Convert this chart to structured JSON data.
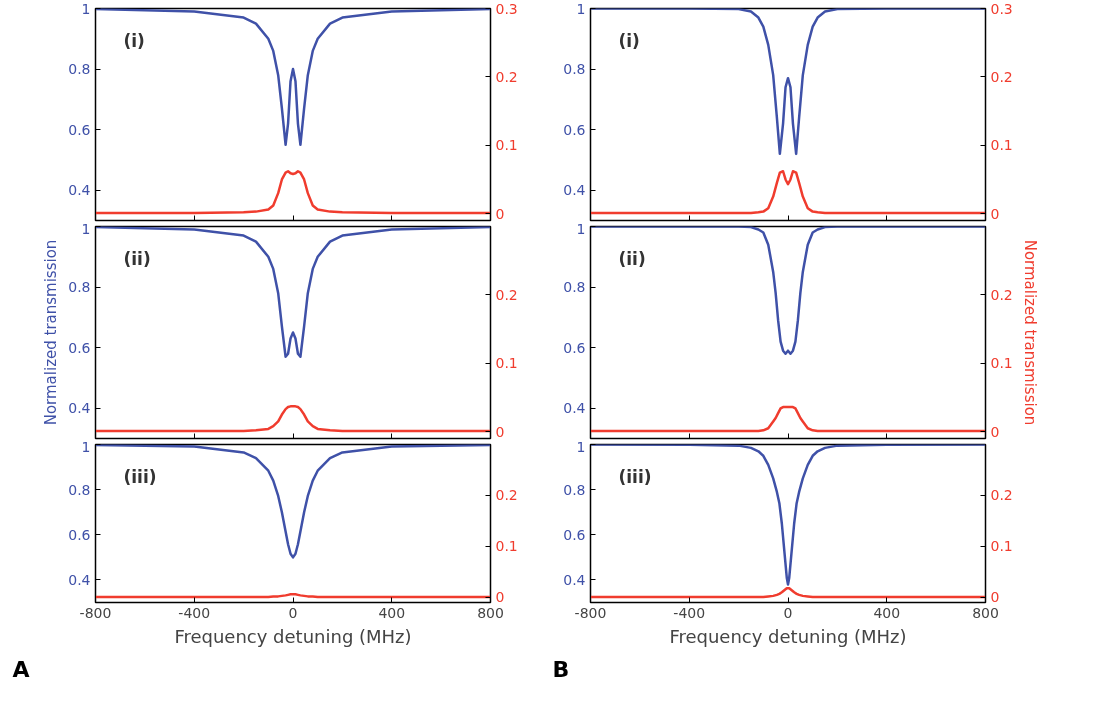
{
  "chart_data": [
    {
      "type": "line",
      "xlim": [
        -800,
        800
      ],
      "xticks": [
        -800,
        -400,
        0,
        400,
        800
      ],
      "ylim": [
        0.3,
        1
      ],
      "yticks": [
        0.4,
        0.6,
        0.8,
        1
      ],
      "y2lim": [
        -0.01,
        0.3
      ],
      "y2ticks": [
        0,
        0.1,
        0.2,
        0.3
      ],
      "tick_labels": "y",
      "annotations": [
        "(i)"
      ],
      "series": [
        {
          "color": "#3f51a8",
          "x": [
            -800,
            -400,
            -200,
            -150,
            -100,
            -80,
            -60,
            -45,
            -30,
            -20,
            -10,
            0,
            10,
            20,
            30,
            45,
            60,
            80,
            100,
            150,
            200,
            400,
            800
          ],
          "values": [
            0.998,
            0.99,
            0.97,
            0.95,
            0.9,
            0.86,
            0.78,
            0.67,
            0.55,
            0.62,
            0.76,
            0.8,
            0.76,
            0.62,
            0.55,
            0.67,
            0.78,
            0.86,
            0.9,
            0.95,
            0.97,
            0.99,
            0.998
          ]
        },
        {
          "color": "#f03c2e",
          "axis": "y2",
          "x": [
            -800,
            -400,
            -200,
            -150,
            -100,
            -80,
            -60,
            -45,
            -30,
            -20,
            -10,
            0,
            10,
            20,
            30,
            45,
            60,
            80,
            100,
            150,
            200,
            400,
            800
          ],
          "values": [
            0.001,
            0.001,
            0.002,
            0.003,
            0.006,
            0.012,
            0.03,
            0.05,
            0.06,
            0.062,
            0.059,
            0.058,
            0.059,
            0.062,
            0.06,
            0.05,
            0.03,
            0.012,
            0.006,
            0.003,
            0.002,
            0.001,
            0.001
          ]
        }
      ]
    },
    {
      "type": "line",
      "xlim": [
        -800,
        800
      ],
      "xticks": [
        -800,
        -400,
        0,
        400,
        800
      ],
      "ylim": [
        0.3,
        1
      ],
      "yticks": [
        0.4,
        0.6,
        0.8,
        1
      ],
      "y2lim": [
        -0.01,
        0.3
      ],
      "y2ticks": [
        0,
        0.1,
        0.2,
        0.3
      ],
      "tick_labels": "y",
      "annotations": [
        "(i)"
      ],
      "series": [
        {
          "color": "#3f51a8",
          "x": [
            -800,
            -400,
            -200,
            -150,
            -120,
            -100,
            -80,
            -60,
            -45,
            -33,
            -20,
            -10,
            0,
            10,
            20,
            33,
            45,
            60,
            80,
            100,
            120,
            150,
            200,
            400,
            800
          ],
          "values": [
            1,
            1,
            0.998,
            0.99,
            0.97,
            0.94,
            0.88,
            0.78,
            0.64,
            0.52,
            0.62,
            0.74,
            0.77,
            0.74,
            0.62,
            0.52,
            0.64,
            0.78,
            0.88,
            0.94,
            0.97,
            0.99,
            0.998,
            1,
            1
          ]
        },
        {
          "color": "#f03c2e",
          "axis": "y2",
          "x": [
            -800,
            -400,
            -200,
            -150,
            -120,
            -100,
            -80,
            -60,
            -45,
            -33,
            -20,
            -10,
            0,
            10,
            20,
            33,
            45,
            60,
            80,
            100,
            120,
            150,
            200,
            400,
            800
          ],
          "values": [
            0.001,
            0.001,
            0.001,
            0.001,
            0.002,
            0.003,
            0.008,
            0.025,
            0.045,
            0.06,
            0.062,
            0.05,
            0.043,
            0.05,
            0.062,
            0.06,
            0.045,
            0.025,
            0.008,
            0.003,
            0.002,
            0.001,
            0.001,
            0.001,
            0.001
          ]
        }
      ]
    },
    {
      "type": "line",
      "xlim": [
        -800,
        800
      ],
      "xticks": [
        -800,
        -400,
        0,
        400,
        800
      ],
      "ylim": [
        0.3,
        1
      ],
      "yticks": [
        0.4,
        0.6,
        0.8,
        1
      ],
      "y2lim": [
        -0.01,
        0.3
      ],
      "y2ticks": [
        0,
        0.1,
        0.2
      ],
      "tick_labels": "y",
      "ylabel": "Normalized transmission",
      "annotations": [
        "(ii)"
      ],
      "series": [
        {
          "color": "#3f51a8",
          "x": [
            -800,
            -400,
            -200,
            -150,
            -100,
            -80,
            -60,
            -45,
            -30,
            -20,
            -10,
            0,
            10,
            20,
            30,
            45,
            60,
            80,
            100,
            150,
            200,
            400,
            800
          ],
          "values": [
            0.998,
            0.99,
            0.97,
            0.95,
            0.9,
            0.86,
            0.78,
            0.67,
            0.57,
            0.58,
            0.63,
            0.65,
            0.63,
            0.58,
            0.57,
            0.67,
            0.78,
            0.86,
            0.9,
            0.95,
            0.97,
            0.99,
            0.998
          ]
        },
        {
          "color": "#f03c2e",
          "axis": "y2",
          "x": [
            -800,
            -400,
            -200,
            -150,
            -100,
            -80,
            -60,
            -45,
            -30,
            -20,
            -10,
            0,
            10,
            20,
            30,
            45,
            60,
            80,
            100,
            150,
            200,
            400,
            800
          ],
          "values": [
            0.001,
            0.001,
            0.001,
            0.002,
            0.004,
            0.008,
            0.015,
            0.025,
            0.033,
            0.036,
            0.037,
            0.037,
            0.037,
            0.036,
            0.033,
            0.025,
            0.015,
            0.008,
            0.004,
            0.002,
            0.001,
            0.001,
            0.001
          ]
        }
      ]
    },
    {
      "type": "line",
      "xlim": [
        -800,
        800
      ],
      "xticks": [
        -800,
        -400,
        0,
        400,
        800
      ],
      "ylim": [
        0.3,
        1
      ],
      "yticks": [
        0.4,
        0.6,
        0.8,
        1
      ],
      "y2lim": [
        -0.01,
        0.3
      ],
      "y2ticks": [
        0,
        0.1,
        0.2
      ],
      "tick_labels": "y",
      "y2label": "Normalized transmission",
      "annotations": [
        "(ii)"
      ],
      "series": [
        {
          "color": "#3f51a8",
          "x": [
            -800,
            -400,
            -200,
            -150,
            -120,
            -100,
            -80,
            -60,
            -50,
            -40,
            -30,
            -20,
            -10,
            0,
            10,
            20,
            30,
            40,
            50,
            60,
            80,
            100,
            120,
            150,
            200,
            400,
            800
          ],
          "values": [
            1,
            1,
            1,
            0.998,
            0.99,
            0.98,
            0.94,
            0.85,
            0.78,
            0.69,
            0.62,
            0.59,
            0.58,
            0.59,
            0.58,
            0.59,
            0.62,
            0.69,
            0.78,
            0.85,
            0.94,
            0.98,
            0.99,
            0.998,
            1,
            1,
            1
          ]
        },
        {
          "color": "#f03c2e",
          "axis": "y2",
          "x": [
            -800,
            -400,
            -200,
            -150,
            -120,
            -100,
            -80,
            -60,
            -50,
            -40,
            -30,
            -20,
            -10,
            0,
            10,
            20,
            30,
            40,
            50,
            60,
            80,
            100,
            120,
            150,
            200,
            400,
            800
          ],
          "values": [
            0.001,
            0.001,
            0.001,
            0.001,
            0.001,
            0.002,
            0.005,
            0.015,
            0.02,
            0.027,
            0.034,
            0.036,
            0.036,
            0.036,
            0.036,
            0.036,
            0.034,
            0.027,
            0.02,
            0.015,
            0.005,
            0.002,
            0.001,
            0.001,
            0.001,
            0.001,
            0.001
          ]
        }
      ]
    },
    {
      "type": "line",
      "xlim": [
        -800,
        800
      ],
      "xticks": [
        -800,
        -400,
        0,
        400,
        800
      ],
      "ylim": [
        0.3,
        1
      ],
      "yticks": [
        0.4,
        0.6,
        0.8,
        1
      ],
      "y2lim": [
        -0.01,
        0.3
      ],
      "y2ticks": [
        0,
        0.1,
        0.2
      ],
      "xlabel": "Frequency detuning (MHz)",
      "annotations": [
        "(iii)",
        "A"
      ],
      "series": [
        {
          "color": "#3f51a8",
          "x": [
            -800,
            -400,
            -200,
            -150,
            -100,
            -80,
            -60,
            -45,
            -30,
            -20,
            -10,
            0,
            10,
            20,
            30,
            45,
            60,
            80,
            100,
            150,
            200,
            400,
            800
          ],
          "values": [
            0.998,
            0.991,
            0.965,
            0.94,
            0.884,
            0.84,
            0.772,
            0.7,
            0.615,
            0.558,
            0.516,
            0.5,
            0.516,
            0.558,
            0.615,
            0.7,
            0.772,
            0.84,
            0.884,
            0.94,
            0.965,
            0.991,
            0.998
          ]
        },
        {
          "color": "#f03c2e",
          "axis": "y2",
          "x": [
            -800,
            -400,
            -200,
            -150,
            -100,
            -80,
            -60,
            -45,
            -30,
            -20,
            -10,
            0,
            10,
            20,
            30,
            45,
            60,
            80,
            100,
            150,
            200,
            400,
            800
          ],
          "values": [
            0.001,
            0.001,
            0.001,
            0.001,
            0.001,
            0.002,
            0.002,
            0.003,
            0.004,
            0.005,
            0.006,
            0.006,
            0.006,
            0.005,
            0.004,
            0.003,
            0.002,
            0.002,
            0.001,
            0.001,
            0.001,
            0.001,
            0.001
          ]
        }
      ]
    },
    {
      "type": "line",
      "xlim": [
        -800,
        800
      ],
      "xticks": [
        -800,
        -400,
        0,
        400,
        800
      ],
      "ylim": [
        0.3,
        1
      ],
      "yticks": [
        0.4,
        0.6,
        0.8,
        1
      ],
      "y2lim": [
        -0.01,
        0.3
      ],
      "y2ticks": [
        0,
        0.1,
        0.2
      ],
      "xlabel": "Frequency detuning (MHz)",
      "annotations": [
        "(iii)",
        "B"
      ],
      "series": [
        {
          "color": "#3f51a8",
          "x": [
            -800,
            -400,
            -200,
            -150,
            -120,
            -100,
            -80,
            -60,
            -45,
            -35,
            -25,
            -15,
            -5,
            0,
            5,
            15,
            25,
            35,
            45,
            60,
            80,
            100,
            120,
            150,
            200,
            400,
            800
          ],
          "values": [
            1,
            0.999,
            0.995,
            0.985,
            0.97,
            0.95,
            0.91,
            0.85,
            0.79,
            0.74,
            0.65,
            0.53,
            0.41,
            0.38,
            0.41,
            0.53,
            0.65,
            0.74,
            0.79,
            0.85,
            0.91,
            0.95,
            0.97,
            0.985,
            0.995,
            0.999,
            1
          ]
        },
        {
          "color": "#f03c2e",
          "axis": "y2",
          "x": [
            -800,
            -400,
            -200,
            -150,
            -120,
            -100,
            -80,
            -60,
            -45,
            -35,
            -25,
            -15,
            -5,
            0,
            5,
            15,
            25,
            35,
            45,
            60,
            80,
            100,
            120,
            150,
            200,
            400,
            800
          ],
          "values": [
            0.001,
            0.001,
            0.001,
            0.001,
            0.001,
            0.001,
            0.002,
            0.003,
            0.005,
            0.007,
            0.01,
            0.014,
            0.018,
            0.018,
            0.018,
            0.014,
            0.01,
            0.007,
            0.005,
            0.003,
            0.002,
            0.001,
            0.001,
            0.001,
            0.001,
            0.001,
            0.001
          ]
        }
      ]
    }
  ]
}
